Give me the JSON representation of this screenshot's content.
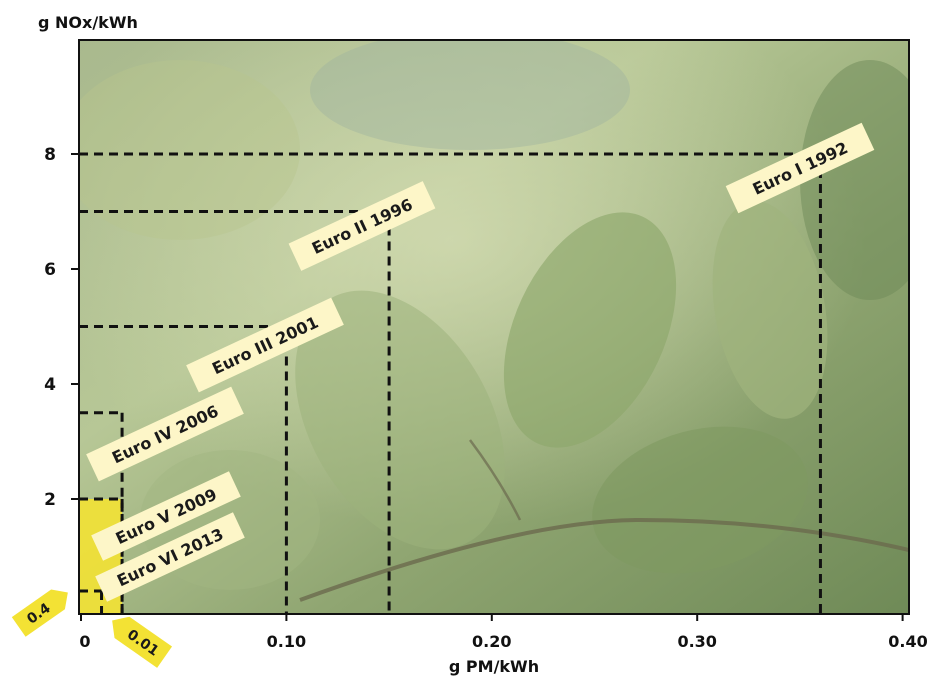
{
  "chart_data": {
    "type": "step-limits",
    "xlabel": "g PM/kWh",
    "ylabel": "g NOx/kWh",
    "xlim": [
      0,
      0.4
    ],
    "ylim": [
      0,
      10
    ],
    "x_ticks": [
      {
        "value": 0,
        "label": "0"
      },
      {
        "value": 0.1,
        "label": "0.10"
      },
      {
        "value": 0.2,
        "label": "0.20"
      },
      {
        "value": 0.3,
        "label": "0.30"
      },
      {
        "value": 0.4,
        "label": "0.40"
      }
    ],
    "y_ticks": [
      {
        "value": 2,
        "label": "2"
      },
      {
        "value": 4,
        "label": "4"
      },
      {
        "value": 6,
        "label": "6"
      },
      {
        "value": 8,
        "label": "8"
      }
    ],
    "standards": [
      {
        "label": "Euro I 1992",
        "pm": 0.36,
        "nox": 8.0
      },
      {
        "label": "Euro II 1996",
        "pm": 0.15,
        "nox": 7.0
      },
      {
        "label": "Euro III 2001",
        "pm": 0.1,
        "nox": 5.0
      },
      {
        "label": "Euro IV 2006",
        "pm": 0.02,
        "nox": 3.5
      },
      {
        "label": "Euro V 2009",
        "pm": 0.02,
        "nox": 2.0
      },
      {
        "label": "Euro VI 2013",
        "pm": 0.01,
        "nox": 0.4
      }
    ],
    "callouts": [
      {
        "label": "0.4",
        "axis": "y",
        "value": 0.4
      },
      {
        "label": "0.01",
        "axis": "x",
        "value": 0.01
      }
    ],
    "highlight_color": "#f3e234",
    "label_bg_color": "#fdf6c8",
    "line_color": "#111111",
    "background": "photo of green leaves"
  }
}
